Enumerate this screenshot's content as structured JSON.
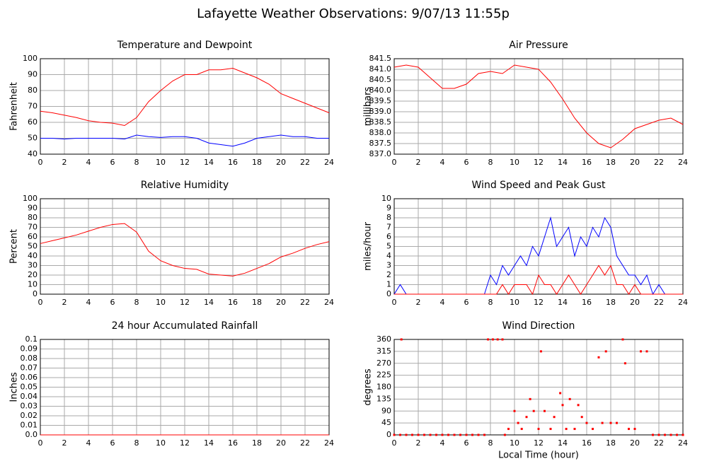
{
  "title": "Lafayette Weather Observations: 9/07/13 11:55p",
  "chart_data": [
    {
      "type": "line",
      "title": "Temperature and Dewpoint",
      "ylabel": "Fahrenheit",
      "x": [
        0,
        1,
        2,
        3,
        4,
        5,
        6,
        7,
        8,
        9,
        10,
        11,
        12,
        13,
        14,
        15,
        16,
        17,
        18,
        19,
        20,
        21,
        22,
        23,
        24
      ],
      "series": [
        {
          "name": "Temperature",
          "color": "#ff0000",
          "values": [
            67,
            66,
            64.5,
            63,
            61,
            60,
            59.5,
            58,
            63,
            73,
            80,
            86,
            90,
            90,
            93,
            93,
            94,
            91,
            88,
            84,
            78,
            75,
            72,
            69,
            66
          ]
        },
        {
          "name": "Dewpoint",
          "color": "#0000ff",
          "values": [
            50,
            50,
            49.5,
            50,
            50,
            50,
            50,
            49.5,
            52,
            51,
            50.5,
            51,
            51,
            50,
            47,
            46,
            45,
            47,
            50,
            51,
            52,
            51,
            51,
            50,
            50
          ]
        }
      ],
      "xlim": [
        0,
        24
      ],
      "xticks": [
        0,
        2,
        4,
        6,
        8,
        10,
        12,
        14,
        16,
        18,
        20,
        22,
        24
      ],
      "ylim": [
        40,
        100
      ],
      "yticks": [
        40,
        50,
        60,
        70,
        80,
        90,
        100
      ],
      "grid": true
    },
    {
      "type": "line",
      "title": "Air Pressure",
      "ylabel": "millibars",
      "x": [
        0,
        1,
        2,
        3,
        4,
        5,
        6,
        7,
        8,
        9,
        10,
        11,
        12,
        13,
        14,
        15,
        16,
        17,
        18,
        19,
        20,
        21,
        22,
        23,
        24
      ],
      "series": [
        {
          "name": "Pressure",
          "color": "#ff0000",
          "values": [
            841.1,
            841.2,
            841.1,
            840.6,
            840.1,
            840.1,
            840.3,
            840.8,
            840.9,
            840.8,
            841.2,
            841.1,
            841.0,
            840.4,
            839.6,
            838.7,
            838.0,
            837.5,
            837.3,
            837.7,
            838.2,
            838.4,
            838.6,
            838.7,
            838.4
          ]
        }
      ],
      "xlim": [
        0,
        24
      ],
      "xticks": [
        0,
        2,
        4,
        6,
        8,
        10,
        12,
        14,
        16,
        18,
        20,
        22,
        24
      ],
      "ylim": [
        837,
        841.5
      ],
      "yticks": [
        {
          "value": 837,
          "label": "837.0"
        },
        837.5,
        {
          "value": 838,
          "label": "838.0"
        },
        838.5,
        {
          "value": 839,
          "label": "839.0"
        },
        839.5,
        {
          "value": 840,
          "label": "840.0"
        },
        840.5,
        {
          "value": 841,
          "label": "841.0"
        },
        841.5
      ],
      "grid": true
    },
    {
      "type": "line",
      "title": "Relative Humidity",
      "ylabel": "Percent",
      "x": [
        0,
        1,
        2,
        3,
        4,
        5,
        6,
        7,
        8,
        9,
        10,
        11,
        12,
        13,
        14,
        15,
        16,
        17,
        18,
        19,
        20,
        21,
        22,
        23,
        24
      ],
      "series": [
        {
          "name": "Humidity",
          "color": "#ff0000",
          "values": [
            53,
            56,
            59,
            62,
            66,
            70,
            73,
            74,
            65,
            45,
            35,
            30,
            27,
            26,
            21,
            20,
            19,
            22,
            27,
            32,
            39,
            43,
            48,
            52,
            55
          ]
        }
      ],
      "xlim": [
        0,
        24
      ],
      "xticks": [
        0,
        2,
        4,
        6,
        8,
        10,
        12,
        14,
        16,
        18,
        20,
        22,
        24
      ],
      "ylim": [
        0,
        100
      ],
      "yticks": [
        0,
        10,
        20,
        30,
        40,
        50,
        60,
        70,
        80,
        90,
        100
      ],
      "grid": true
    },
    {
      "type": "line",
      "title": "Wind Speed and Peak Gust",
      "ylabel": "miles/hour",
      "x": [
        0,
        0.5,
        1,
        1.5,
        2,
        2.5,
        3,
        3.5,
        4,
        4.5,
        5,
        5.5,
        6,
        6.5,
        7,
        7.5,
        8,
        8.5,
        9,
        9.5,
        10,
        10.5,
        11,
        11.5,
        12,
        12.5,
        13,
        13.5,
        14,
        14.5,
        15,
        15.5,
        16,
        16.5,
        17,
        17.5,
        18,
        18.5,
        19,
        19.5,
        20,
        20.5,
        21,
        21.5,
        22,
        22.5,
        23,
        23.5,
        24
      ],
      "series": [
        {
          "name": "Peak Gust",
          "color": "#0000ff",
          "values": [
            0,
            1,
            0,
            0,
            0,
            0,
            0,
            0,
            0,
            0,
            0,
            0,
            0,
            0,
            0,
            0,
            2,
            1,
            3,
            2,
            3,
            4,
            3,
            5,
            4,
            6,
            8,
            5,
            6,
            7,
            4,
            6,
            5,
            7,
            6,
            8,
            7,
            4,
            3,
            2,
            2,
            1,
            2,
            0,
            1,
            0,
            0,
            0,
            0
          ]
        },
        {
          "name": "Wind Speed",
          "color": "#ff0000",
          "values": [
            0,
            0,
            0,
            0,
            0,
            0,
            0,
            0,
            0,
            0,
            0,
            0,
            0,
            0,
            0,
            0,
            0,
            0,
            1,
            0,
            1,
            1,
            1,
            0,
            2,
            1,
            1,
            0,
            1,
            2,
            1,
            0,
            1,
            2,
            3,
            2,
            3,
            1,
            1,
            0,
            1,
            0,
            0,
            0,
            0,
            0,
            0,
            0,
            0
          ]
        }
      ],
      "xlim": [
        0,
        24
      ],
      "xticks": [
        0,
        2,
        4,
        6,
        8,
        10,
        12,
        14,
        16,
        18,
        20,
        22,
        24
      ],
      "ylim": [
        0,
        10
      ],
      "yticks": [
        0,
        1,
        2,
        3,
        4,
        5,
        6,
        7,
        8,
        9,
        10
      ],
      "grid": true
    },
    {
      "type": "line",
      "title": "24 hour Accumulated Rainfall",
      "ylabel": "Inches",
      "x": [
        0,
        24
      ],
      "series": [
        {
          "name": "Rainfall",
          "color": "#ff0000",
          "values": [
            0,
            0
          ]
        }
      ],
      "xlim": [
        0,
        24
      ],
      "xticks": [
        0,
        2,
        4,
        6,
        8,
        10,
        12,
        14,
        16,
        18,
        20,
        22,
        24
      ],
      "ylim": [
        0,
        0.1
      ],
      "yticks": [
        {
          "value": 0,
          "label": "0.0"
        },
        0.01,
        0.02,
        0.03,
        0.04,
        0.05,
        0.06,
        0.07,
        0.08,
        0.09,
        0.1
      ],
      "grid": true
    },
    {
      "type": "scatter",
      "title": "Wind Direction",
      "ylabel": "degrees",
      "xlabel": "Local Time (hour)",
      "x": [
        0,
        0.5,
        0.6,
        1,
        1.5,
        2,
        2.5,
        3,
        3.5,
        4,
        4.5,
        5,
        5.5,
        6,
        6.5,
        7,
        7.5,
        7.8,
        8.2,
        8.6,
        9,
        9.2,
        9.5,
        10,
        10.3,
        10.6,
        11,
        11.3,
        11.6,
        12,
        12.2,
        12.5,
        13,
        13.3,
        13.8,
        14,
        14.3,
        14.6,
        15,
        15.3,
        15.6,
        16,
        16.5,
        17,
        17.3,
        17.6,
        18,
        18.5,
        19,
        19.2,
        19.5,
        20,
        20.5,
        21,
        21.5,
        22,
        22.5,
        23,
        23.5,
        24
      ],
      "series": [
        {
          "name": "Direction",
          "color": "#ff0000",
          "values": [
            0,
            0,
            360,
            0,
            0,
            0,
            0,
            0,
            0,
            0,
            0,
            0,
            0,
            0,
            0,
            0,
            0,
            360,
            360,
            360,
            360,
            0,
            22.5,
            90,
            45,
            22.5,
            67.5,
            135,
            90,
            22.5,
            315,
            90,
            22.5,
            67.5,
            157.5,
            112.5,
            22.5,
            135,
            22.5,
            112.5,
            67.5,
            45,
            22.5,
            292.5,
            45,
            315,
            45,
            45,
            360,
            270,
            22.5,
            22.5,
            315,
            315,
            0,
            0,
            0,
            0,
            0,
            0
          ]
        }
      ],
      "xlim": [
        0,
        24
      ],
      "xticks": [
        0,
        2,
        4,
        6,
        8,
        10,
        12,
        14,
        16,
        18,
        20,
        22,
        24
      ],
      "ylim": [
        0,
        360
      ],
      "yticks": [
        0,
        45,
        90,
        135,
        180,
        225,
        270,
        315,
        360
      ],
      "grid": true
    }
  ]
}
